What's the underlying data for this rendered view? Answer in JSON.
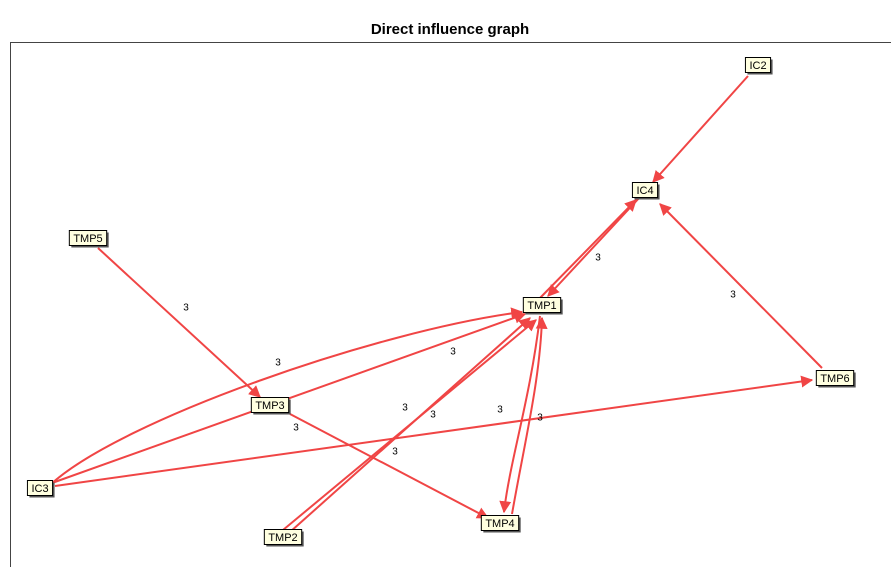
{
  "title": "Direct influence graph",
  "nodes": [
    "IC2",
    "IC4",
    "TMP5",
    "TMP1",
    "TMP6",
    "TMP3",
    "IC3",
    "TMP4",
    "TMP2"
  ],
  "edge_labels": [
    "3",
    "3",
    "3",
    "3",
    "3",
    "3",
    "3",
    "3",
    "3",
    "3",
    "3"
  ]
}
